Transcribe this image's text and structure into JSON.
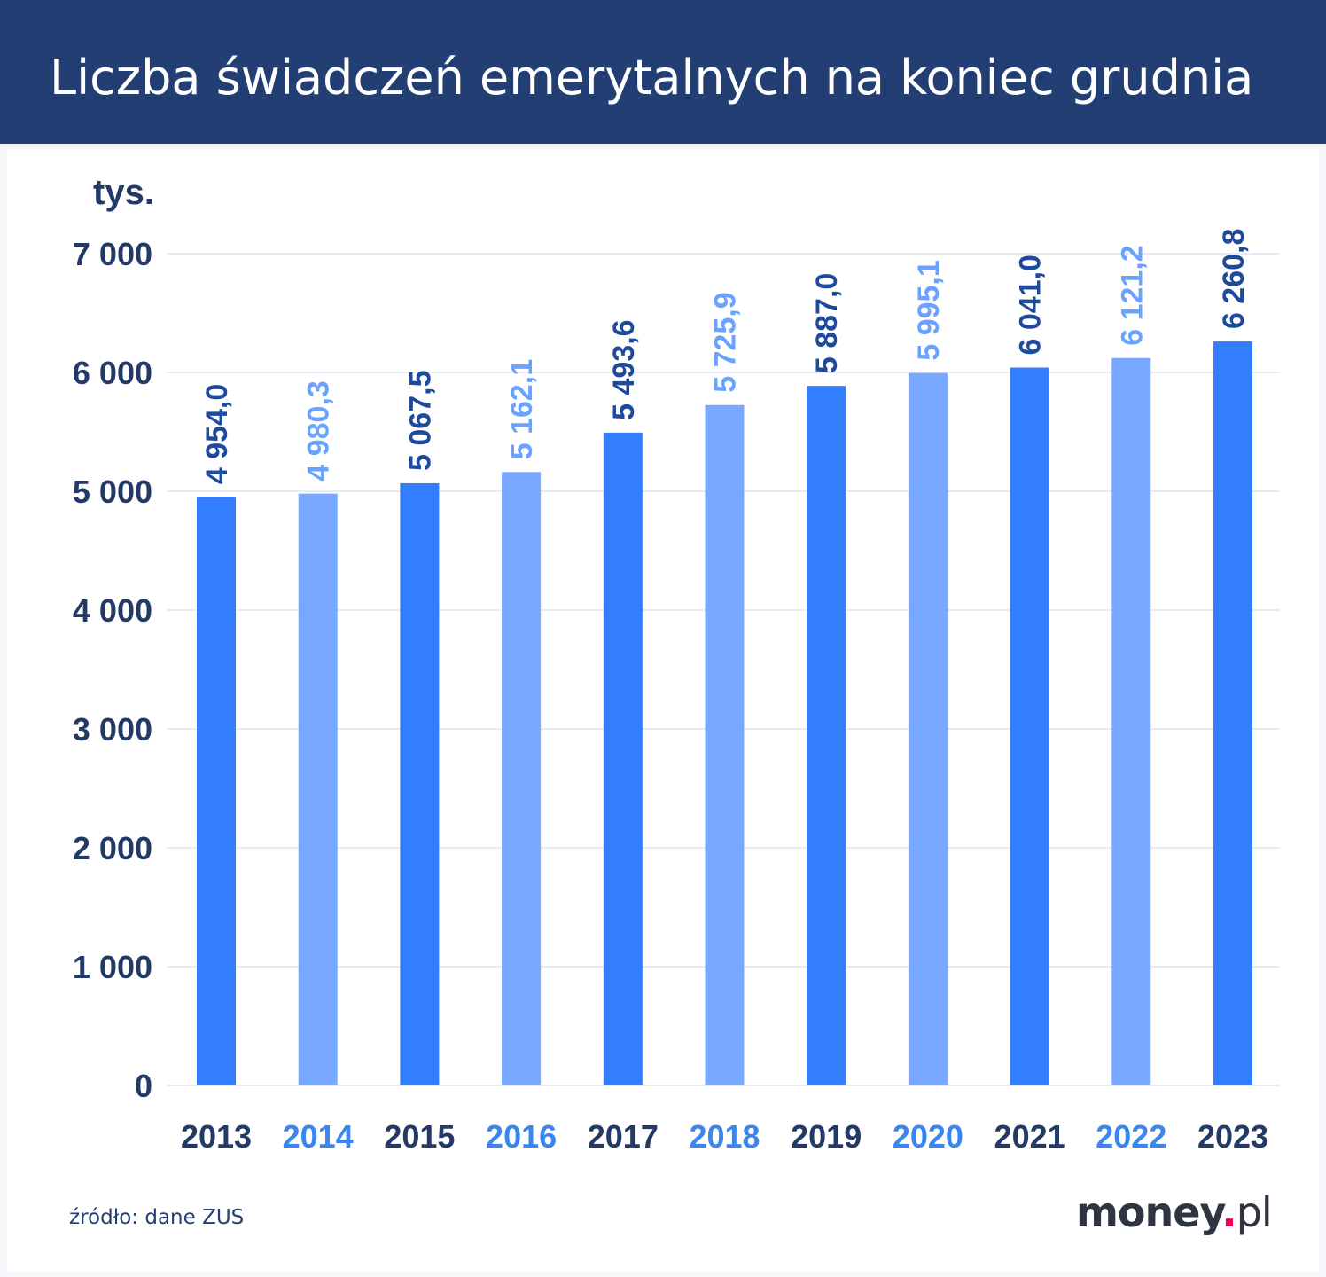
{
  "header": {
    "title": "Liczba świadczeń emerytalnych na koniec grudnia"
  },
  "source": "źródło: dane ZUS",
  "logo": {
    "name": "money",
    "dot": ".",
    "tld": "pl"
  },
  "colors": {
    "header_bg": "#233e72",
    "bar_dark": "#337dff",
    "bar_light": "#78a8ff",
    "label_dark": "#1e4a9e",
    "label_light": "#6aa3ff",
    "year_dark": "#243a66",
    "year_light": "#3a86f0",
    "axis_text": "#243a66",
    "grid": "#d6e1f2",
    "logo_dot": "#e8005a"
  },
  "chart_data": {
    "type": "bar",
    "unit_label": "tys.",
    "categories": [
      "2013",
      "2014",
      "2015",
      "2016",
      "2017",
      "2018",
      "2019",
      "2020",
      "2021",
      "2022",
      "2023"
    ],
    "values": [
      4954.0,
      4980.3,
      5067.5,
      5162.1,
      5493.6,
      5725.9,
      5887.0,
      5995.1,
      6041.0,
      6121.2,
      6260.8
    ],
    "value_labels": [
      "4 954,0",
      "4 980,3",
      "5 067,5",
      "5 162,1",
      "5 493,6",
      "5 725,9",
      "5 887,0",
      "5 995,1",
      "6 041,0",
      "6 121,2",
      "6 260,8"
    ],
    "yticks": [
      0,
      1000,
      2000,
      3000,
      4000,
      5000,
      6000,
      7000
    ],
    "ytick_labels": [
      "0",
      "1 000",
      "2 000",
      "3 000",
      "4 000",
      "5 000",
      "6 000",
      "7 000"
    ],
    "ylim": [
      0,
      7000
    ],
    "grid": true,
    "legend": "none",
    "bar_style": "alternating dark/light starting with dark"
  }
}
